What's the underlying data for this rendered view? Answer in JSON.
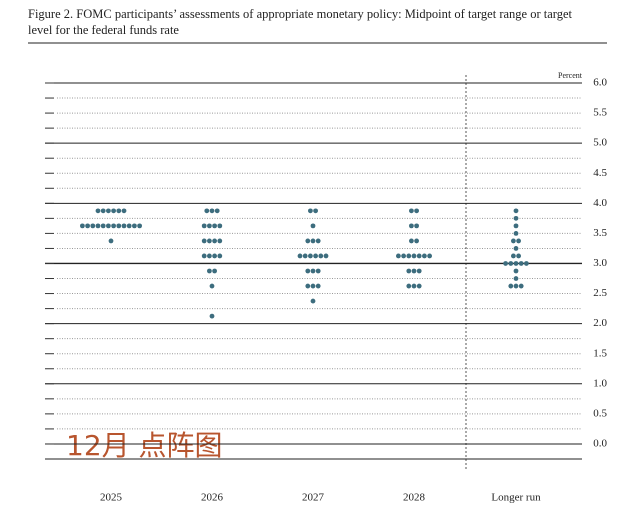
{
  "chart_data": {
    "type": "dot",
    "title": "Figure 2. FOMC participants’ assessments of appropriate monetary policy: Midpoint of target range or target level for the federal funds rate",
    "y_label": "Percent",
    "annotation": "12月 点阵图",
    "color": "#3d6d7e",
    "categories": [
      "2025",
      "2026",
      "2027",
      "2028",
      "Longer run"
    ],
    "values": [
      [
        3.875,
        3.875,
        3.875,
        3.875,
        3.875,
        3.875,
        3.625,
        3.625,
        3.625,
        3.625,
        3.625,
        3.625,
        3.625,
        3.625,
        3.625,
        3.625,
        3.625,
        3.625,
        3.375
      ],
      [
        3.875,
        3.875,
        3.875,
        3.625,
        3.625,
        3.625,
        3.625,
        3.375,
        3.375,
        3.375,
        3.375,
        3.125,
        3.125,
        3.125,
        3.125,
        2.875,
        2.875,
        2.625,
        2.125
      ],
      [
        3.875,
        3.875,
        3.625,
        3.375,
        3.375,
        3.375,
        3.125,
        3.125,
        3.125,
        3.125,
        3.125,
        3.125,
        2.875,
        2.875,
        2.875,
        2.625,
        2.625,
        2.625,
        2.375
      ],
      [
        3.875,
        3.875,
        3.625,
        3.625,
        3.375,
        3.375,
        3.125,
        3.125,
        3.125,
        3.125,
        3.125,
        3.125,
        3.125,
        2.875,
        2.875,
        2.875,
        2.625,
        2.625,
        2.625
      ],
      [
        3.875,
        3.75,
        3.625,
        3.5,
        3.375,
        3.375,
        3.25,
        3.125,
        3.125,
        3,
        3,
        3,
        3,
        3,
        2.875,
        2.75,
        2.625,
        2.625,
        2.625
      ]
    ],
    "ylim": [
      -0.25,
      6
    ],
    "yticks": [
      {
        "value": 0,
        "label": "0.0"
      },
      {
        "value": 0.5,
        "label": "0.5"
      },
      {
        "value": 1,
        "label": "1.0"
      },
      {
        "value": 1.5,
        "label": "1.5"
      },
      {
        "value": 2,
        "label": "2.0"
      },
      {
        "value": 2.5,
        "label": "2.5"
      },
      {
        "value": 3,
        "label": "3.0"
      },
      {
        "value": 3.5,
        "label": "3.5"
      },
      {
        "value": 4,
        "label": "4.0"
      },
      {
        "value": 4.5,
        "label": "4.5"
      },
      {
        "value": 5,
        "label": "5.0"
      },
      {
        "value": 5.5,
        "label": "5.5"
      },
      {
        "value": 6,
        "label": "6.0"
      }
    ],
    "minor_yticks": [
      -0.25,
      0.25,
      0.75,
      1.25,
      1.75,
      2.25,
      2.75,
      3.25,
      3.75,
      4.25,
      4.75,
      5.25,
      5.75
    ],
    "grid": true
  }
}
